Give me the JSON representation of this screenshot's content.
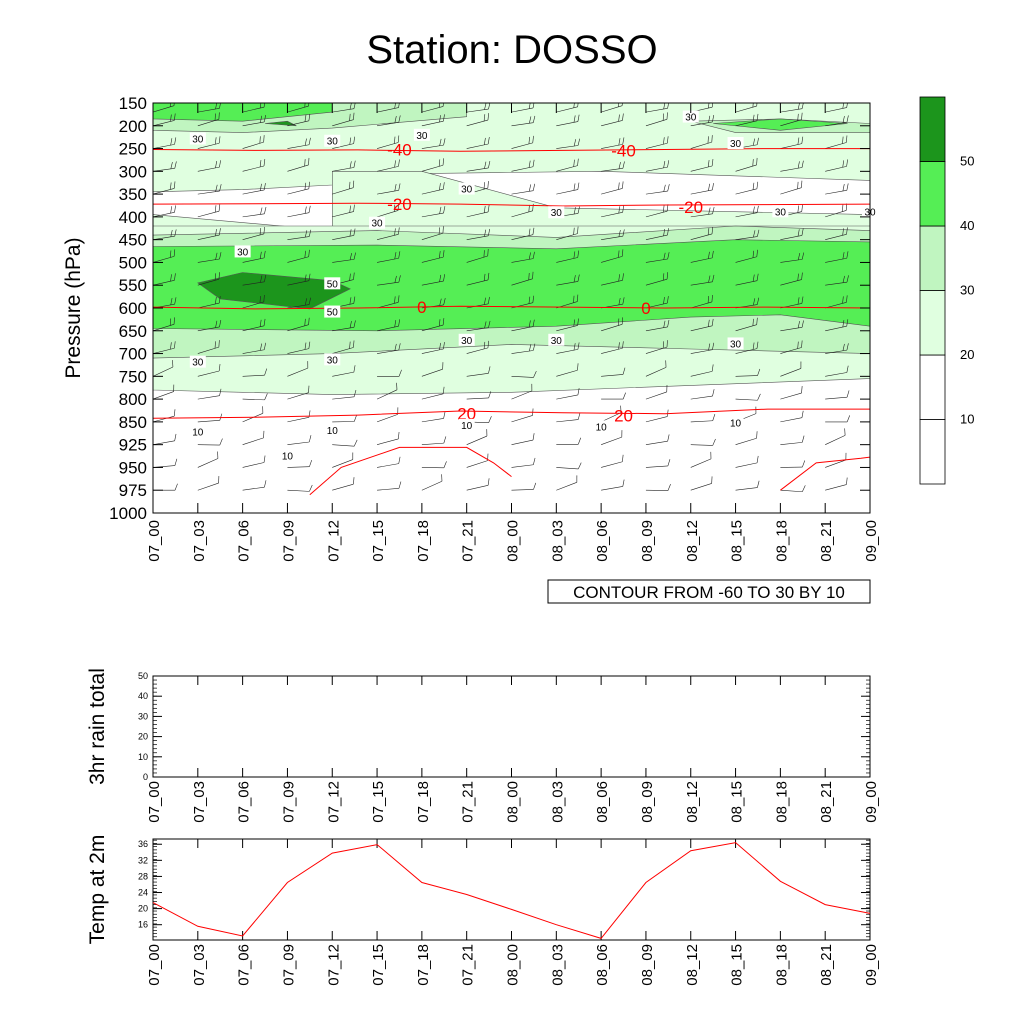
{
  "page": {
    "title": "Station: DOSSO"
  },
  "colors": {
    "temp_line": "#ff0000",
    "fill_20_30": "#e0ffe0",
    "fill_30_40": "#c0f5c0",
    "fill_40_50": "#55ee55",
    "fill_50_plus": "#1c951c"
  },
  "chart_data": [
    {
      "type": "heatmap",
      "name": "cross-section",
      "ylabel": "Pressure (hPa)",
      "time_labels": [
        "07_00",
        "07_03",
        "07_06",
        "07_09",
        "07_12",
        "07_15",
        "07_18",
        "07_21",
        "08_00",
        "08_03",
        "08_06",
        "08_09",
        "08_12",
        "08_15",
        "08_18",
        "08_21",
        "09_00"
      ],
      "pressure_levels": [
        150,
        200,
        250,
        300,
        350,
        400,
        450,
        500,
        550,
        600,
        650,
        700,
        750,
        800,
        850,
        925,
        950,
        975,
        1000
      ],
      "footer": "CONTOUR FROM -60 TO 30 BY 10",
      "colorbar": {
        "labels": [
          "10",
          "20",
          "30",
          "40",
          "50"
        ],
        "bins": [
          {
            "min": 0,
            "max": 10,
            "color": "#ffffff"
          },
          {
            "min": 10,
            "max": 20,
            "color": "#ffffff"
          },
          {
            "min": 20,
            "max": 30,
            "color": "#e0ffe0"
          },
          {
            "min": 30,
            "max": 40,
            "color": "#c0f5c0"
          },
          {
            "min": 40,
            "max": 50,
            "color": "#55ee55"
          },
          {
            "min": 50,
            "max": 60,
            "color": "#1c951c"
          }
        ]
      },
      "temperature_contours": [
        {
          "label": "-40",
          "p": [
            252,
            254,
            253,
            256,
            254,
            252,
            250,
            250
          ]
        },
        {
          "label": "-20",
          "p": [
            372,
            371,
            370,
            372,
            376,
            374,
            373,
            372
          ]
        },
        {
          "label": "0",
          "p": [
            598,
            602,
            600,
            596,
            598,
            600,
            598,
            600
          ]
        },
        {
          "label": "20",
          "p": [
            842,
            840,
            835,
            826,
            830,
            832,
            822,
            822
          ]
        }
      ],
      "wind_speed_labels": [
        {
          "text": "30",
          "t": 1,
          "p": 230
        },
        {
          "text": "30",
          "t": 4,
          "p": 235
        },
        {
          "text": "30",
          "t": 6,
          "p": 222
        },
        {
          "text": "30",
          "t": 12,
          "p": 182
        },
        {
          "text": "30",
          "t": 13,
          "p": 240
        },
        {
          "text": "30",
          "t": 7,
          "p": 340
        },
        {
          "text": "30",
          "t": 5,
          "p": 415
        },
        {
          "text": "30",
          "t": 9,
          "p": 392
        },
        {
          "text": "30",
          "t": 14,
          "p": 390
        },
        {
          "text": "30",
          "t": 16,
          "p": 390
        },
        {
          "text": "30",
          "t": 2,
          "p": 478
        },
        {
          "text": "50",
          "t": 4,
          "p": 548
        },
        {
          "text": "50",
          "t": 4,
          "p": 610
        },
        {
          "text": "30",
          "t": 7,
          "p": 672
        },
        {
          "text": "30",
          "t": 9,
          "p": 672
        },
        {
          "text": "30",
          "t": 13,
          "p": 680
        },
        {
          "text": "30",
          "t": 1,
          "p": 720
        },
        {
          "text": "30",
          "t": 4,
          "p": 715
        },
        {
          "text": "10",
          "t": 1,
          "p": 885
        },
        {
          "text": "10",
          "t": 4,
          "p": 880
        },
        {
          "text": "10",
          "t": 7,
          "p": 863
        },
        {
          "text": "10",
          "t": 10,
          "p": 868
        },
        {
          "text": "10",
          "t": 13,
          "p": 855
        },
        {
          "text": "10",
          "t": 3,
          "p": 938
        }
      ]
    },
    {
      "type": "bar",
      "name": "rain",
      "ylabel": "3hr rain total",
      "categories": [
        "07_00",
        "07_03",
        "07_06",
        "07_09",
        "07_12",
        "07_15",
        "07_18",
        "07_21",
        "08_00",
        "08_03",
        "08_06",
        "08_09",
        "08_12",
        "08_15",
        "08_18",
        "08_21",
        "09_00"
      ],
      "values": [
        0,
        0,
        0,
        0,
        0,
        0,
        0,
        0,
        0,
        0,
        0,
        0,
        0,
        0,
        0,
        0,
        0
      ],
      "ylim": [
        0,
        50
      ],
      "yticks": [
        0,
        10,
        20,
        30,
        40,
        50
      ]
    },
    {
      "type": "line",
      "name": "temperature",
      "ylabel": "Temp at 2m",
      "categories": [
        "07_00",
        "07_03",
        "07_06",
        "07_09",
        "07_12",
        "07_15",
        "07_18",
        "07_21",
        "08_00",
        "08_03",
        "08_06",
        "08_09",
        "08_12",
        "08_15",
        "08_18",
        "08_21",
        "09_00"
      ],
      "values": [
        21.5,
        15.6,
        13.2,
        26.5,
        33.8,
        35.9,
        26.5,
        23.5,
        19.8,
        16,
        12.6,
        26.5,
        34.4,
        36.4,
        26.8,
        21,
        18.8
      ],
      "ylim": [
        12.2,
        37.3
      ],
      "yticks": [
        16,
        20,
        24,
        28,
        32,
        36
      ]
    }
  ]
}
